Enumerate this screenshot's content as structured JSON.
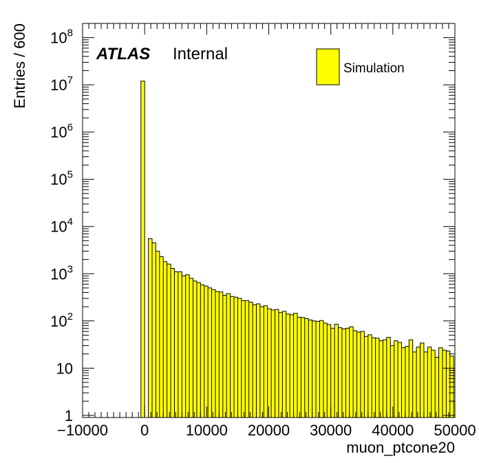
{
  "chart_data": {
    "type": "bar",
    "xlabel": "muon_ptcone20",
    "ylabel": "Entries / 600",
    "xlim": [
      -10000,
      50000
    ],
    "ylim": [
      0.9,
      200000000
    ],
    "yscale": "log",
    "grid": false,
    "legend_position": "top-right",
    "atlas_label": "ATLAS",
    "atlas_status": "Internal",
    "x_tick_labels": [
      "−10000",
      "0",
      "10000",
      "20000",
      "30000",
      "40000",
      "50000"
    ],
    "x_tick_values": [
      -10000,
      0,
      10000,
      20000,
      30000,
      40000,
      50000
    ],
    "y_tick_values": [
      1,
      10,
      100,
      1000,
      10000,
      100000,
      1000000,
      10000000,
      100000000
    ],
    "y_tick_labels": [
      {
        "base": "1",
        "exp": ""
      },
      {
        "base": "10",
        "exp": ""
      },
      {
        "base": "10",
        "exp": "2"
      },
      {
        "base": "10",
        "exp": "3"
      },
      {
        "base": "10",
        "exp": "4"
      },
      {
        "base": "10",
        "exp": "5"
      },
      {
        "base": "10",
        "exp": "6"
      },
      {
        "base": "10",
        "exp": "7"
      },
      {
        "base": "10",
        "exp": "8"
      }
    ],
    "bin_width": 600,
    "series": [
      {
        "name": "Simulation",
        "fill": "#ffff00",
        "stroke": "#000000",
        "bin_lows": [
          -600,
          0,
          600,
          1200,
          1800,
          2400,
          3000,
          3600,
          4200,
          4800,
          5400,
          6000,
          6600,
          7200,
          7800,
          8400,
          9000,
          9600,
          10200,
          10800,
          11400,
          12000,
          12600,
          13200,
          13800,
          14400,
          15000,
          15600,
          16200,
          16800,
          17400,
          18000,
          18600,
          19200,
          19800,
          20400,
          21000,
          21600,
          22200,
          22800,
          23400,
          24000,
          24600,
          25200,
          25800,
          26400,
          27000,
          27600,
          28200,
          28800,
          29400,
          30000,
          30600,
          31200,
          31800,
          32400,
          33000,
          33600,
          34200,
          34800,
          35400,
          36000,
          36600,
          37200,
          37800,
          38400,
          39000,
          39600,
          40200,
          40800,
          41400,
          42000,
          42600,
          43200,
          43800,
          44400,
          45000,
          45600,
          46200,
          46800,
          47400,
          48000,
          48600,
          49200,
          49800
        ],
        "values": [
          12000000,
          0,
          5500,
          4500,
          3000,
          2300,
          1800,
          1600,
          1300,
          1100,
          1100,
          900,
          950,
          800,
          700,
          650,
          580,
          550,
          500,
          460,
          420,
          410,
          350,
          380,
          330,
          320,
          300,
          270,
          270,
          250,
          220,
          230,
          200,
          210,
          180,
          170,
          175,
          150,
          160,
          140,
          135,
          145,
          120,
          118,
          112,
          105,
          100,
          98,
          102,
          90,
          84,
          70,
          85,
          72,
          68,
          70,
          75,
          62,
          58,
          60,
          47,
          51,
          44,
          43,
          38,
          40,
          45,
          30,
          38,
          35,
          27,
          29,
          40,
          22,
          28,
          34,
          22,
          28,
          24,
          17,
          27,
          24,
          23,
          18,
          2
        ]
      }
    ]
  }
}
